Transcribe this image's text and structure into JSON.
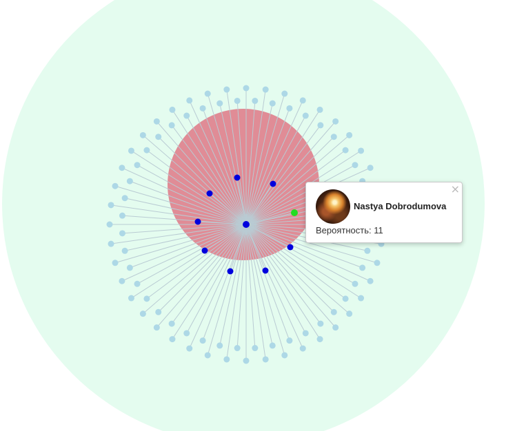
{
  "colors": {
    "outer_circle": "#e4fcef",
    "influence_circle": "#e08c96",
    "edge": "#b9cbd3",
    "outer_node": "#add8e6",
    "inner_node": "#0000dd",
    "center_node": "#0000dd",
    "selected_node": "#22dd22"
  },
  "graph": {
    "outer_node_count": 88,
    "inner_node_count": 8,
    "selected_node_count": 1
  },
  "tooltip": {
    "close_symbol": "×",
    "name": "Nastya Dobrodumova",
    "probability_label": "Вероятность:",
    "probability_value": "11"
  }
}
